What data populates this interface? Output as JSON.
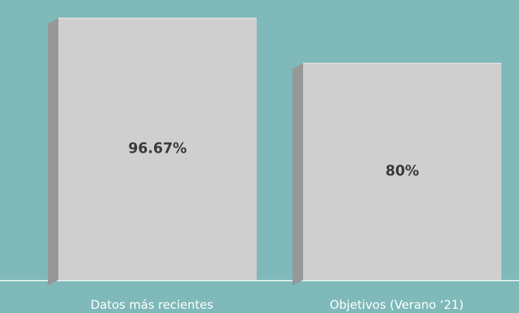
{
  "chart_data": {
    "type": "bar3d",
    "categories": [
      "Datos más recientes",
      "Objetivos (Verano ‘21)"
    ],
    "values": [
      96.67,
      80
    ],
    "value_labels": [
      "96.67%",
      "80%"
    ],
    "color": "#cfcfcf"
  }
}
